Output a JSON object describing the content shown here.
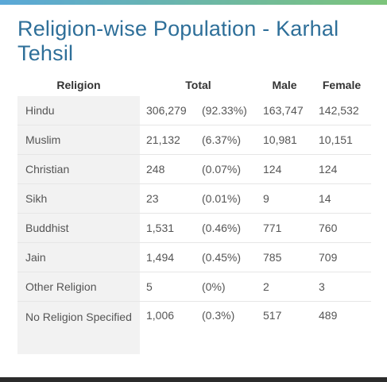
{
  "title": "Religion-wise Population - Karhal Tehsil",
  "headers": {
    "religion": "Religion",
    "total": "Total",
    "male": "Male",
    "female": "Female"
  },
  "rows": [
    {
      "religion": "Hindu",
      "total": "306,279",
      "percent": "(92.33%)",
      "male": "163,747",
      "female": "142,532"
    },
    {
      "religion": "Muslim",
      "total": "21,132",
      "percent": "(6.37%)",
      "male": "10,981",
      "female": "10,151"
    },
    {
      "religion": "Christian",
      "total": "248",
      "percent": "(0.07%)",
      "male": "124",
      "female": "124"
    },
    {
      "religion": "Sikh",
      "total": "23",
      "percent": "(0.01%)",
      "male": "9",
      "female": "14"
    },
    {
      "religion": "Buddhist",
      "total": "1,531",
      "percent": "(0.46%)",
      "male": "771",
      "female": "760"
    },
    {
      "religion": "Jain",
      "total": "1,494",
      "percent": "(0.45%)",
      "male": "785",
      "female": "709"
    },
    {
      "religion": "Other Religion",
      "total": "5",
      "percent": "(0%)",
      "male": "2",
      "female": "3"
    },
    {
      "religion": "No Religion Specified",
      "total": "1,006",
      "percent": "(0.3%)",
      "male": "517",
      "female": "489"
    }
  ]
}
